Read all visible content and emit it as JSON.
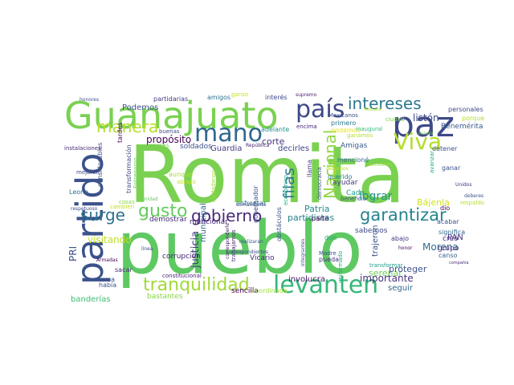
{
  "words": [
    {
      "text": "Romita",
      "color": "#7ad151"
    },
    {
      "text": "pueblo",
      "color": "#5ec962"
    },
    {
      "text": "Guanajuato",
      "color": "#7ad151"
    },
    {
      "text": "partido",
      "color": "#3b528b"
    },
    {
      "text": "paz",
      "color": "#3e4989"
    },
    {
      "text": "país",
      "color": "#3e4989"
    },
    {
      "text": "mano",
      "color": "#31688e"
    },
    {
      "text": "Viva",
      "color": "#b5de2b"
    },
    {
      "text": "levanten",
      "color": "#35b779"
    },
    {
      "text": "intereses",
      "color": "#2a788e"
    },
    {
      "text": "manera",
      "color": "#b5de2b"
    },
    {
      "text": "gusto",
      "color": "#65cb5e"
    },
    {
      "text": "surge",
      "color": "#2c728e"
    },
    {
      "text": "gobierno",
      "color": "#482878"
    },
    {
      "text": "garantizar",
      "color": "#26828e"
    },
    {
      "text": "tranquilidad",
      "color": "#a0da39"
    },
    {
      "text": "Nacional",
      "color": "#90d743"
    },
    {
      "text": "filas",
      "color": "#2a788e"
    },
    {
      "text": "lograr",
      "color": "#21918c"
    },
    {
      "text": "importante",
      "color": "#46337e"
    },
    {
      "text": "justicia",
      "color": "#433e85"
    },
    {
      "text": "Guardia",
      "color": "#443a83"
    },
    {
      "text": "propósito",
      "color": "#440154"
    },
    {
      "text": "Patria",
      "color": "#228c8d"
    },
    {
      "text": "listón",
      "color": "#3e4989"
    },
    {
      "text": "Bájenla",
      "color": "#d2e21b"
    },
    {
      "text": "Morena",
      "color": "#306a8e"
    },
    {
      "text": "PAN",
      "color": "#46327e"
    },
    {
      "text": "PRI",
      "color": "#3b528b"
    },
    {
      "text": "corrupción",
      "color": "#482475"
    },
    {
      "text": "visitando",
      "color": "#bddf26"
    },
    {
      "text": "serenar",
      "color": "#6ccd5a"
    },
    {
      "text": "seguir",
      "color": "#31688e"
    },
    {
      "text": "involucra",
      "color": "#471365"
    },
    {
      "text": "Vicario",
      "color": "#472d7b"
    },
    {
      "text": "sencilla",
      "color": "#440154"
    },
    {
      "text": "corte",
      "color": "#46337e"
    },
    {
      "text": "decirles",
      "color": "#3f4788"
    },
    {
      "text": "Podemos",
      "color": "#3b528b"
    },
    {
      "text": "demostrar",
      "color": "#482878"
    },
    {
      "text": "Benemérita",
      "color": "#38598c"
    },
    {
      "text": "partidistas",
      "color": "#26828e"
    },
    {
      "text": "adelante",
      "color": "#21918c"
    },
    {
      "text": "encima",
      "color": "#482475"
    },
    {
      "text": "sabemos",
      "color": "#3e4a89"
    },
    {
      "text": "abajo",
      "color": "#443b84"
    },
    {
      "text": "creó",
      "color": "#472c7a"
    },
    {
      "text": "canso",
      "color": "#34618d"
    },
    {
      "text": "grupo",
      "color": "#46307e"
    },
    {
      "text": "proteger",
      "color": "#3b528b"
    },
    {
      "text": "Amigas",
      "color": "#38598c"
    },
    {
      "text": "Cada",
      "color": "#1f9e89"
    },
    {
      "text": "ayudar",
      "color": "#443b84"
    },
    {
      "text": "Leona",
      "color": "#2d708e"
    },
    {
      "text": "sacar",
      "color": "#482475"
    },
    {
      "text": "tarea",
      "color": "#3b528b"
    },
    {
      "text": "había",
      "color": "#3b528b"
    },
    {
      "text": "banderías",
      "color": "#3dbc74"
    },
    {
      "text": "bastantes",
      "color": "#86d549"
    },
    {
      "text": "coordinada",
      "color": "#9fda3a"
    },
    {
      "text": "constitucional",
      "color": "#481f70"
    },
    {
      "text": "Armadas",
      "color": "#440154"
    },
    {
      "text": "municipal",
      "color": "#31688e"
    },
    {
      "text": "mencionar",
      "color": "#482475"
    },
    {
      "text": "considerables",
      "color": "#3b528b"
    },
    {
      "text": "transformación",
      "color": "#3f4788"
    },
    {
      "text": "soldados",
      "color": "#3b528b"
    },
    {
      "text": "corras",
      "color": "#7ad151"
    },
    {
      "text": "aunque",
      "color": "#a8db34"
    },
    {
      "text": "cosas",
      "color": "#86d549"
    },
    {
      "text": "cambien",
      "color": "#bddf26"
    },
    {
      "text": "tardes",
      "color": "#440154"
    },
    {
      "text": "mejoren",
      "color": "#3e4989"
    },
    {
      "text": "instalaciones",
      "color": "#482878"
    },
    {
      "text": "honores",
      "color": "#3b528b"
    },
    {
      "text": "partidarias",
      "color": "#433e85"
    },
    {
      "text": "amigos",
      "color": "#2c728e"
    },
    {
      "text": "ganso",
      "color": "#cae11f"
    },
    {
      "text": "interés",
      "color": "#3e4989"
    },
    {
      "text": "supremo",
      "color": "#481a6c"
    },
    {
      "text": "buenas",
      "color": "#3e4989"
    },
    {
      "text": "Mexicanos",
      "color": "#3b528b"
    },
    {
      "text": "primero",
      "color": "#2a788e"
    },
    {
      "text": "podamos",
      "color": "#e5e419"
    },
    {
      "text": "inaugural",
      "color": "#35b779"
    },
    {
      "text": "ganamos",
      "color": "#b5de2b"
    },
    {
      "text": "personales",
      "color": "#3e4989"
    },
    {
      "text": "porque",
      "color": "#b5de2b"
    },
    {
      "text": "detener",
      "color": "#3b528b"
    },
    {
      "text": "ganar",
      "color": "#3b528b"
    },
    {
      "text": "acciones",
      "color": "#a0da39"
    },
    {
      "text": "avanzar",
      "color": "#22a884"
    },
    {
      "text": "mencioné",
      "color": "#31688e"
    },
    {
      "text": "beneficio",
      "color": "#3b528b"
    },
    {
      "text": "querido",
      "color": "#277f8e"
    },
    {
      "text": "democracia",
      "color": "#3b528b"
    },
    {
      "text": "enfrentar",
      "color": "#2c728e"
    },
    {
      "text": "gobernador",
      "color": "#3e4989"
    },
    {
      "text": "ciudadanos",
      "color": "#a0da39"
    },
    {
      "text": "llama",
      "color": "#433e85"
    },
    {
      "text": "trabajamos",
      "color": "#482878"
    },
    {
      "text": "comandante",
      "color": "#3b528b"
    },
    {
      "text": "realizaran",
      "color": "#3b528b"
    },
    {
      "text": "económico",
      "color": "#22a884"
    },
    {
      "text": "obstáculos",
      "color": "#3b528b"
    },
    {
      "text": "corresponderle",
      "color": "#481a6c"
    },
    {
      "text": "correspondientes",
      "color": "#3e4989"
    },
    {
      "text": "abrazo",
      "color": "#cae11f"
    },
    {
      "text": "Unidos",
      "color": "#46307e"
    },
    {
      "text": "acabar",
      "color": "#3b528b"
    },
    {
      "text": "dio",
      "color": "#440154"
    },
    {
      "text": "significa",
      "color": "#31688e"
    },
    {
      "text": "transformar",
      "color": "#1f9e89"
    },
    {
      "text": "uniformado",
      "color": "#22a884"
    },
    {
      "text": "integrantes",
      "color": "#3b528b"
    },
    {
      "text": "trajeron",
      "color": "#3b528b"
    },
    {
      "text": "pueda",
      "color": "#46337e"
    },
    {
      "text": "Madre",
      "color": "#3e4989"
    },
    {
      "text": "don",
      "color": "#22a884"
    },
    {
      "text": "parte",
      "color": "#440154"
    },
    {
      "text": "honor",
      "color": "#440154"
    },
    {
      "text": "compañía",
      "color": "#472d7b"
    },
    {
      "text": "respetuoso",
      "color": "#3e4989"
    },
    {
      "text": "línea",
      "color": "#3e4989"
    },
    {
      "text": "República",
      "color": "#482475"
    },
    {
      "text": "Entregaron",
      "color": "#6ece58"
    },
    {
      "text": "unidad",
      "color": "#65cb5e"
    },
    {
      "text": "deberes",
      "color": "#3b528b"
    },
    {
      "text": "respaldo",
      "color": "#b5de2b"
    },
    {
      "text": "rescate",
      "color": "#b5de2b"
    },
    {
      "text": "ciudad",
      "color": "#7ad151"
    },
    {
      "text": "mayor",
      "color": "#7ad151"
    },
    {
      "text": "debemos",
      "color": "#b5de2b"
    },
    {
      "text": "Federal",
      "color": "#b5de2b"
    }
  ]
}
